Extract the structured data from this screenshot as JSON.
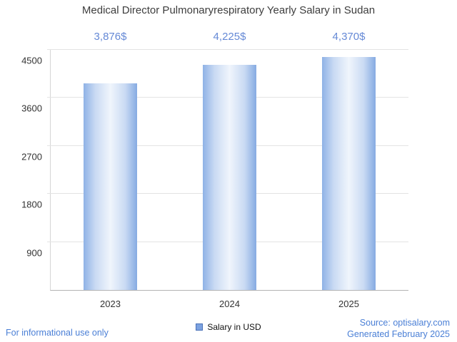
{
  "title": "Medical Director Pulmonaryrespiratory Yearly Salary in Sudan",
  "legend": {
    "label": "Salary in USD",
    "swatch_color": "#7ca2e0",
    "swatch_border": "#4a71b8"
  },
  "footer": {
    "left": "For informational use only",
    "source": "Source: optisalary.com",
    "generated": "Generated February 2025",
    "text_color": "#4a7fd6"
  },
  "chart_data": {
    "type": "bar",
    "title": "Medical Director Pulmonaryrespiratory Yearly Salary in Sudan",
    "categories": [
      "2023",
      "2024",
      "2025"
    ],
    "values": [
      3876,
      4225,
      4370
    ],
    "value_labels": [
      "3,876$",
      "4,225$",
      "4,370$"
    ],
    "value_label_color": "#6589d6",
    "bar_gradient": [
      "#8fb2e6",
      "#c9daf3",
      "#f0f5fc",
      "#c9daf3",
      "#86abe2"
    ],
    "xlabel": "",
    "ylabel": "",
    "ylim": [
      0,
      4500
    ],
    "yticks": [
      900,
      1800,
      2700,
      3600,
      4500
    ],
    "grid": true,
    "legend_entries": [
      "Salary in USD"
    ],
    "legend_position": "bottom"
  }
}
